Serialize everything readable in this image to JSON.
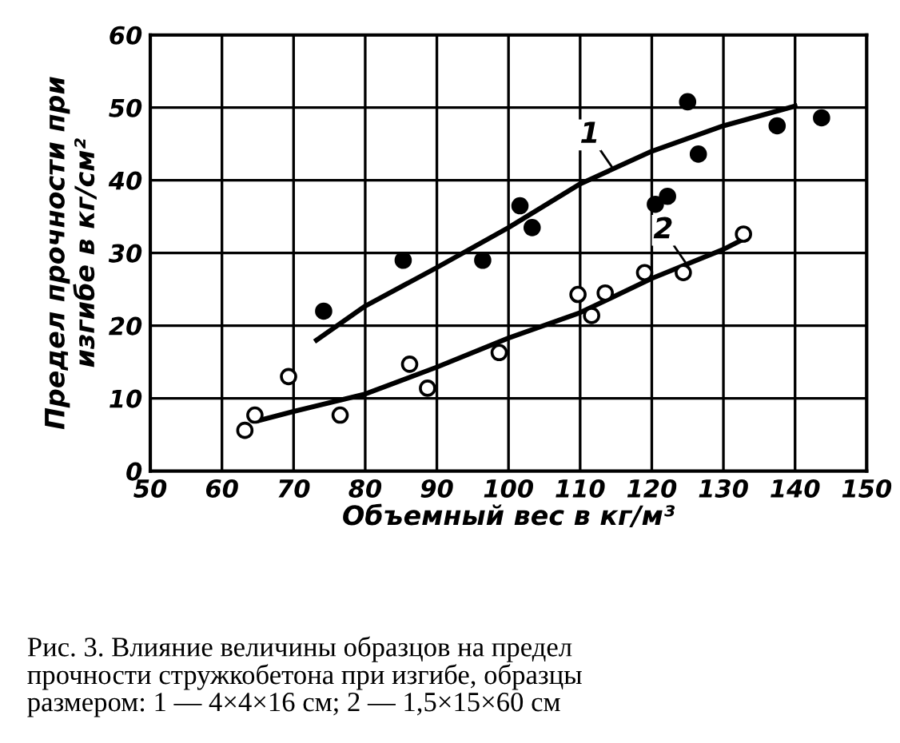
{
  "chart_data": {
    "type": "scatter",
    "xlabel": "Объемный вес в кг/м³",
    "ylabel": "Предел прочности при\nизгибе в кг/см²",
    "annotations": [
      "Рис. 3. Влияние величины образцов на предел\nпрочности стружкобетона при изгибе, образцы\nразмером: 1 — 4×4×16 см; 2 — 1,5×15×60 см"
    ],
    "series": [
      {
        "color": "#000000",
        "marker": "circle",
        "x": [
          74.2,
          85.3,
          96.4,
          101.6,
          103.3,
          120.5,
          122.2,
          125,
          126.5,
          137.5,
          143.7
        ],
        "values": [
          22,
          29,
          29,
          36.5,
          33.5,
          36.7,
          37.8,
          50.8,
          43.6,
          47.5,
          48.6
        ]
      },
      {
        "color": "#ffffff",
        "marker": "circle",
        "x": [
          63.2,
          64.6,
          69.3,
          76.5,
          86.2,
          88.7,
          98.7,
          109.7,
          111.6,
          113.5,
          119,
          124.4,
          132.8
        ],
        "values": [
          5.6,
          7.7,
          13,
          7.7,
          14.7,
          11.4,
          16.3,
          24.3,
          21.4,
          24.5,
          27.3,
          27.3,
          32.6
        ]
      },
      {
        "type": "line",
        "name": "1",
        "color": "#000000",
        "marker": "none",
        "line_style": "solid",
        "x": [
          73.2,
          80,
          90,
          100,
          110,
          120,
          130,
          140
        ],
        "values": [
          18,
          22.7,
          28,
          33.5,
          39.5,
          44,
          47.5,
          50.2
        ]
      },
      {
        "type": "line",
        "name": "2",
        "color": "#000000",
        "marker": "none",
        "line_style": "solid",
        "x": [
          65.3,
          70,
          80,
          90,
          100,
          110,
          120,
          130,
          133
        ],
        "values": [
          7,
          8.2,
          10.6,
          14.3,
          18.3,
          21.8,
          26.5,
          30.5,
          32
        ]
      }
    ],
    "xlim": [
      50,
      150
    ],
    "xticks": [
      50,
      60,
      70,
      80,
      90,
      100,
      110,
      120,
      130,
      140,
      150
    ],
    "ylim": [
      0,
      60
    ],
    "yticks": [
      0,
      10,
      20,
      30,
      40,
      50,
      60
    ],
    "grid": true
  }
}
